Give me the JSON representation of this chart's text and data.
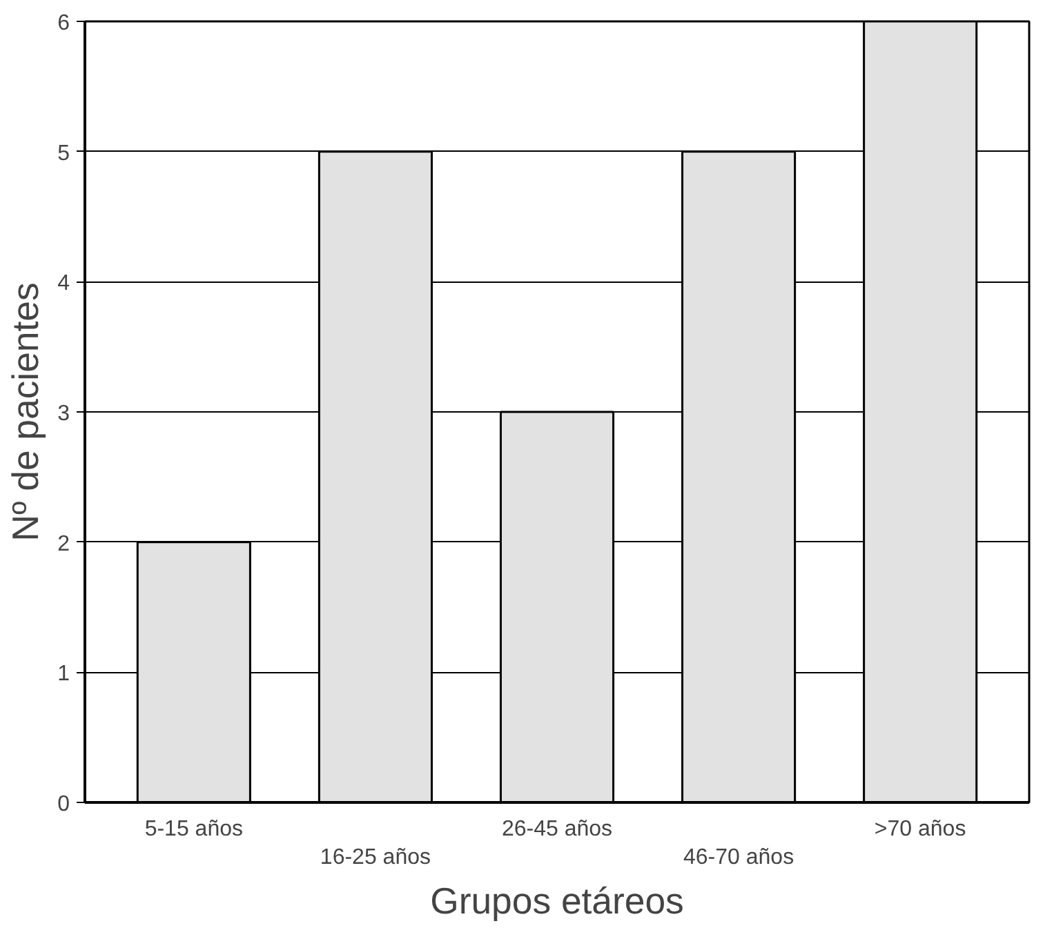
{
  "chart_data": {
    "type": "bar",
    "xlabel": "Grupos etáreos",
    "ylabel": "Nº de pacientes",
    "categories": [
      "5-15 años",
      "16-25 años",
      "26-45 años",
      "46-70 años",
      ">70 años"
    ],
    "values": [
      2,
      5,
      3,
      5,
      6
    ],
    "color": "#e2e2e2",
    "ylim": [
      0,
      6
    ],
    "yticks": [
      0,
      1,
      2,
      3,
      4,
      5,
      6
    ],
    "grid": "y"
  }
}
